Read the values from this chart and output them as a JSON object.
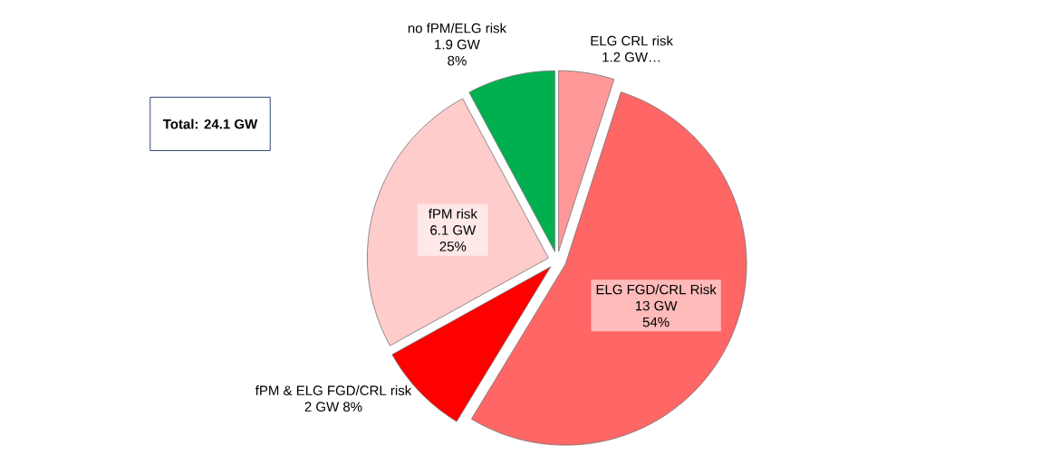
{
  "chart_data": {
    "type": "pie",
    "categories": [
      "ELG CRL risk",
      "ELG FGD/CRL Risk",
      "fPM & ELG FGD/CRL risk",
      "fPM risk",
      "no fPM/ELG risk"
    ],
    "values": [
      1.2,
      13,
      2,
      6.1,
      1.9
    ],
    "value_labels": [
      "1.2 GW…",
      "13 GW 54%",
      "2 GW 8%",
      "6.1 GW 25%",
      "1.9 GW 8%"
    ],
    "colors": [
      "#ff9999",
      "#ff6666",
      "#ff0000",
      "#ffcccc",
      "#00b050"
    ],
    "annotations": [
      "Total: 24.1 GW"
    ]
  }
}
